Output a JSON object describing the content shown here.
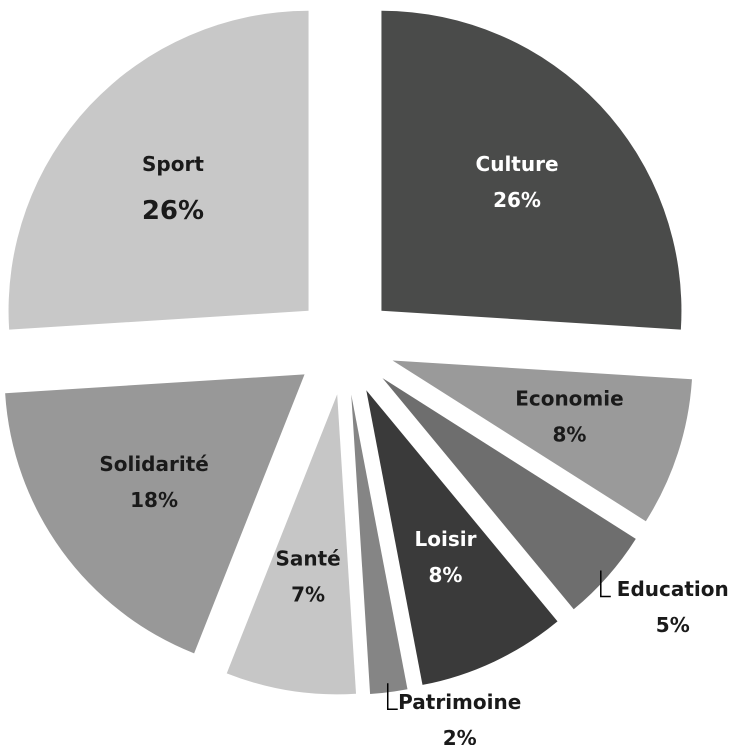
{
  "chart_data": {
    "type": "pie",
    "categories": [
      "Culture",
      "Economie",
      "Education",
      "Loisir",
      "Patrimoine",
      "Santé",
      "Solidarité",
      "Sport"
    ],
    "values": [
      26,
      8,
      5,
      8,
      2,
      7,
      18,
      26
    ],
    "value_labels": [
      "26%",
      "8%",
      "5%",
      "8%",
      "2%",
      "7%",
      "18%",
      "26%"
    ],
    "colors": [
      "#4a4b4a",
      "#9a9a9a",
      "#6e6e6e",
      "#3a3a3a",
      "#858585",
      "#c6c6c6",
      "#989898",
      "#c8c8c8"
    ]
  }
}
